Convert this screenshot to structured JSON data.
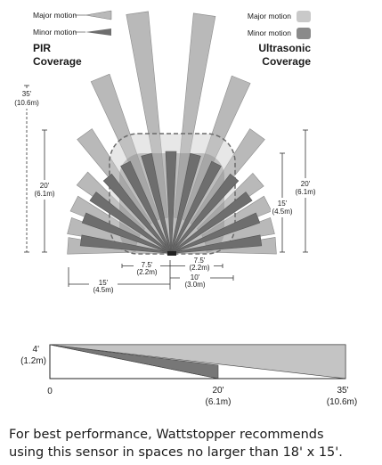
{
  "legend_left": {
    "major_label": "Major motion",
    "minor_label": "Minor motion",
    "title_line1": "PIR",
    "title_line2": "Coverage"
  },
  "legend_right": {
    "major_label": "Major motion",
    "minor_label": "Minor motion",
    "title_line1": "Ultrasonic",
    "title_line2": "Coverage"
  },
  "dimensions": {
    "left_35_ft": "35'",
    "left_35_m": "(10.6m)",
    "left_20_ft": "20'",
    "left_20_m": "(6.1m)",
    "right_20_ft": "20'",
    "right_20_m": "(6.1m)",
    "right_15_ft": "15'",
    "right_15_m": "(4.5m)",
    "bottom_7_5_left_ft": "7.5'",
    "bottom_7_5_left_m": "(2.2m)",
    "bottom_7_5_right_ft": "7.5'",
    "bottom_7_5_right_m": "(2.2m)",
    "bottom_15_ft": "15'",
    "bottom_15_m": "(4.5m)",
    "bottom_10_ft": "10'",
    "bottom_10_m": "(3.0m)"
  },
  "side_view": {
    "height_ft": "4'",
    "height_m": "(1.2m)",
    "zero": "0",
    "mid_ft": "20'",
    "mid_m": "(6.1m)",
    "far_ft": "35'",
    "far_m": "(10.6m)"
  },
  "note": {
    "line1": "For best performance, Wattstopper recommends",
    "line2": "using this sensor in spaces no larger than 18' x 15'."
  },
  "colors": {
    "major": "#b9b9b9",
    "minor": "#6e6e6e",
    "ultra_major": "#c9c9c9",
    "ultra_minor": "#8a8a8a",
    "stroke": "#555555"
  }
}
